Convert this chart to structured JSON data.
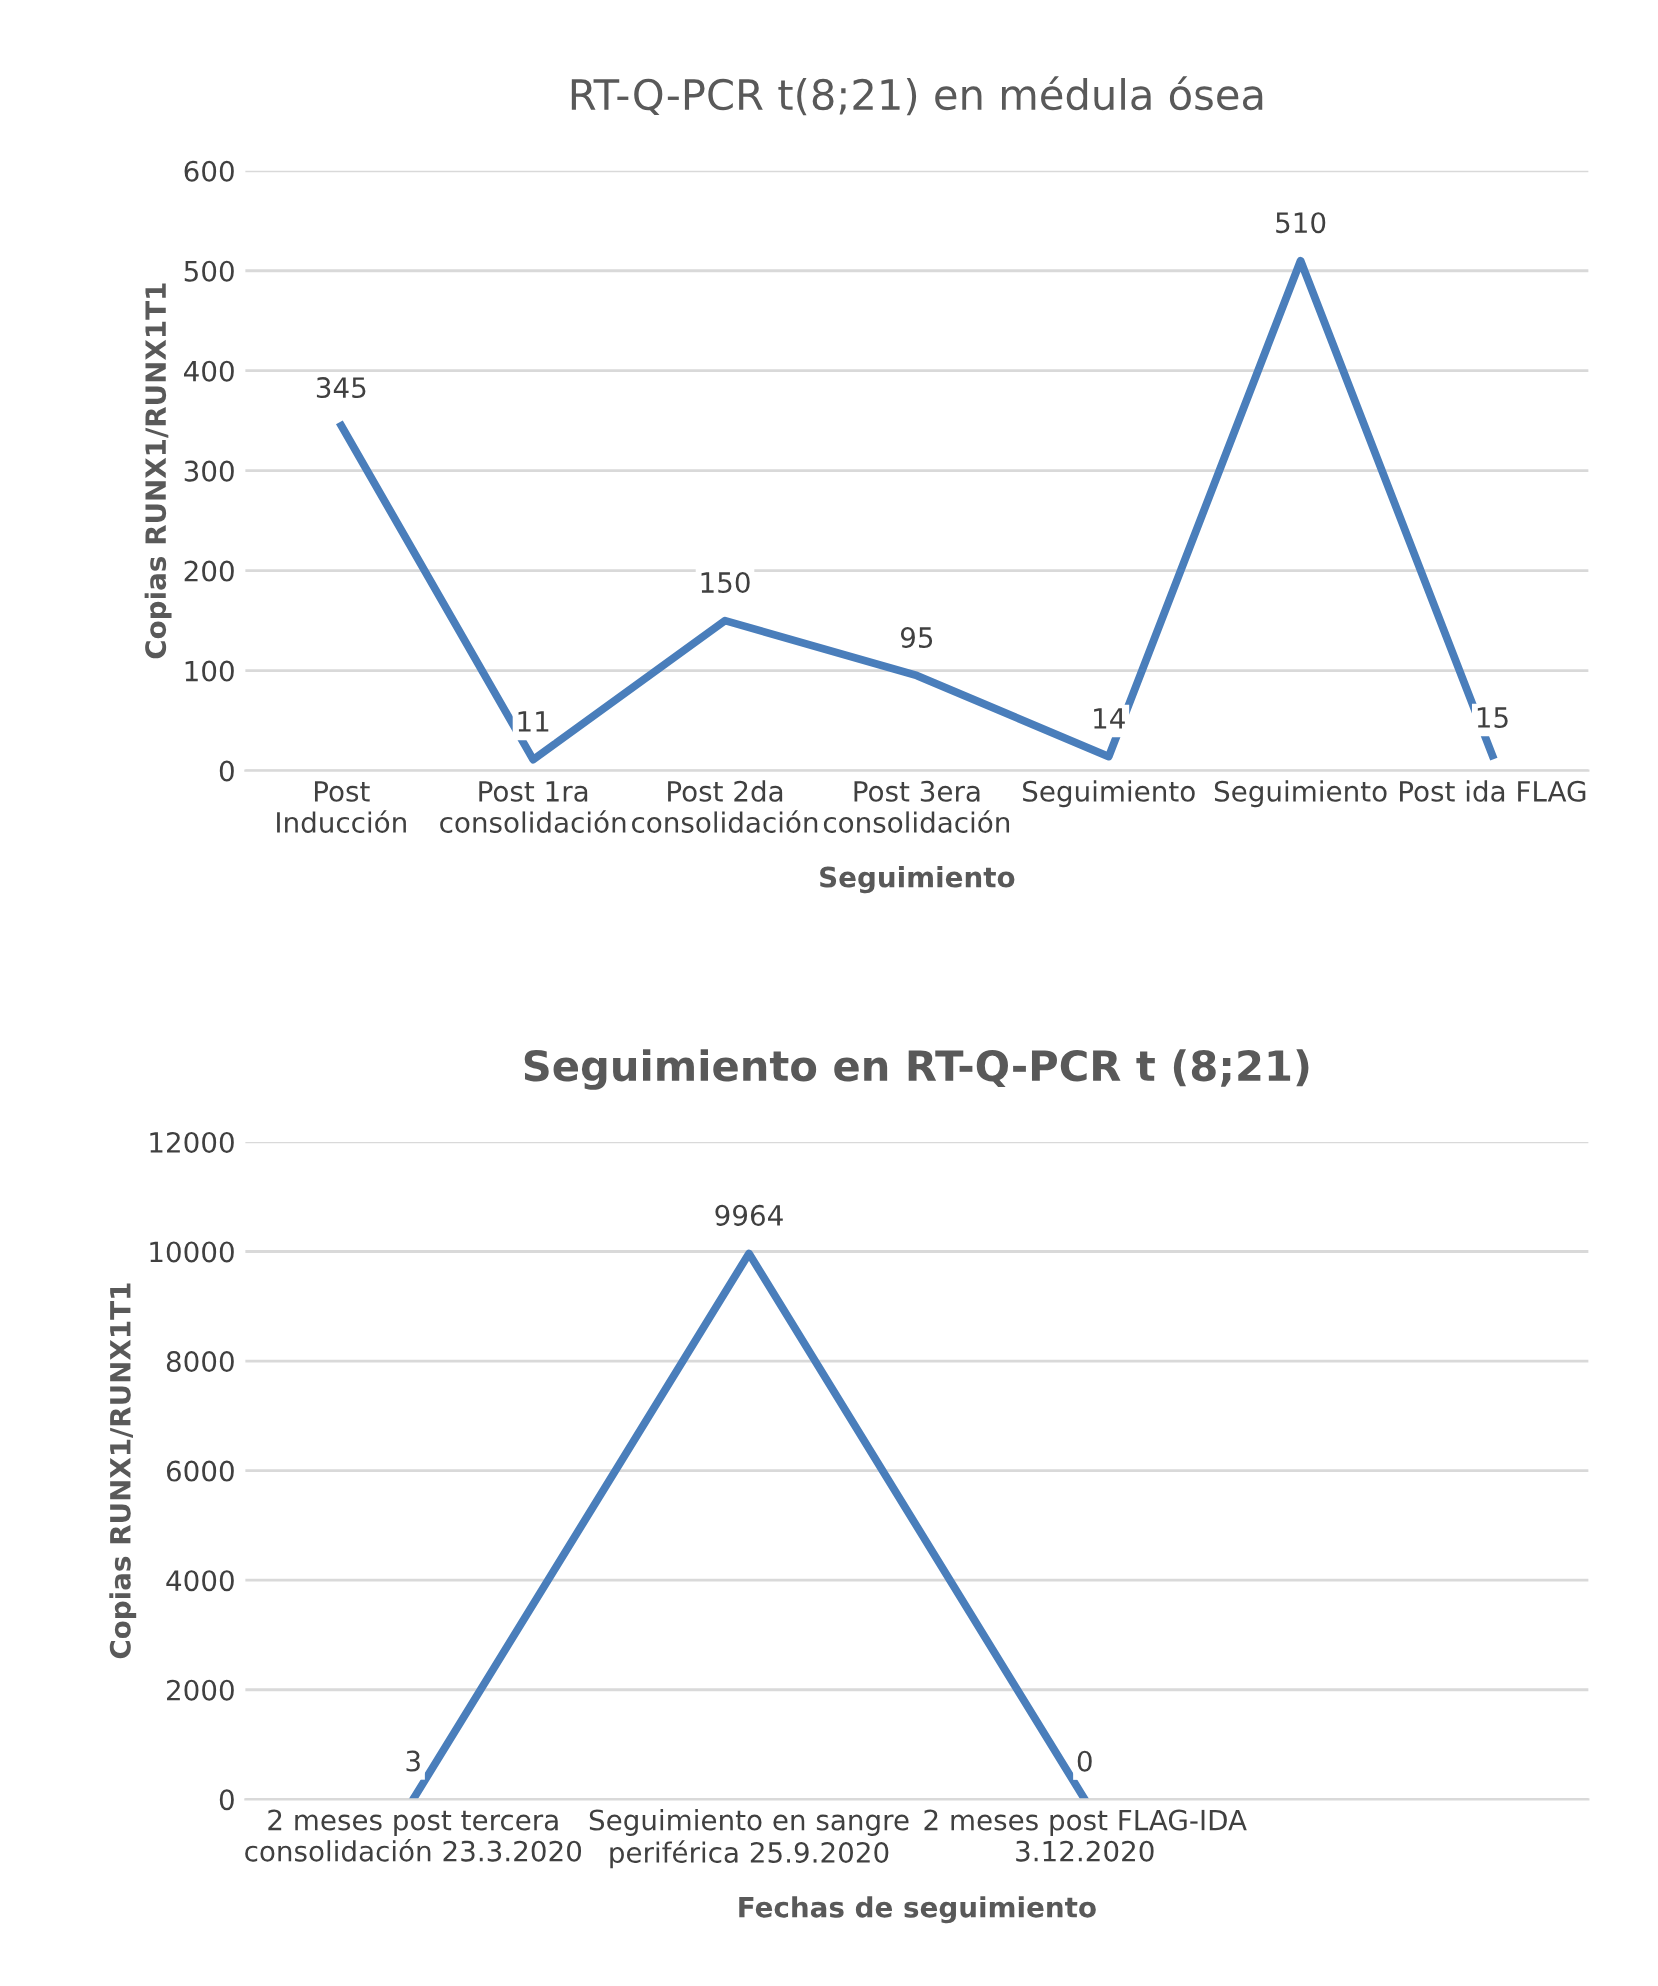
{
  "chart_data": [
    {
      "type": "line",
      "title": "RT-Q-PCR t(8;21) en médula ósea",
      "xlabel": "Seguimiento",
      "ylabel": "Copias RUNX1/RUNX1T1",
      "categories": [
        "Post\nInducción",
        "Post 1ra\nconsolidación",
        "Post 2da\nconsolidación",
        "Post 3era\nconsolidación",
        "Seguimiento",
        "Seguimiento",
        "Post ida FLAG"
      ],
      "series": [
        {
          "color": "#4a7ebb",
          "values": [
            345,
            11,
            150,
            95,
            14,
            510,
            15
          ]
        }
      ],
      "ylim": [
        0,
        600
      ],
      "yticks": [
        0,
        100,
        200,
        300,
        400,
        500,
        600
      ],
      "grid": "y",
      "data_labels": true,
      "marker": "none",
      "line_style": "solid",
      "legend": false
    },
    {
      "type": "line",
      "title": "Seguimiento en RT-Q-PCR t (8;21)",
      "xlabel": "Fechas de seguimiento",
      "ylabel": "Copias RUNX1/RUNX1T1",
      "categories": [
        "2 meses post tercera\nconsolidación 23.3.2020",
        "Seguimiento en sangre\nperiférica 25.9.2020",
        "2 meses post FLAG-IDA\n3.12.2020",
        null
      ],
      "series": [
        {
          "color": "#4a7ebb",
          "values": [
            3,
            9964,
            0,
            null
          ]
        }
      ],
      "ylim": [
        0,
        12000
      ],
      "yticks": [
        0,
        2000,
        4000,
        6000,
        8000,
        10000,
        12000
      ],
      "grid": "y",
      "data_labels": true,
      "marker": "none",
      "line_style": "solid",
      "legend": false
    }
  ]
}
